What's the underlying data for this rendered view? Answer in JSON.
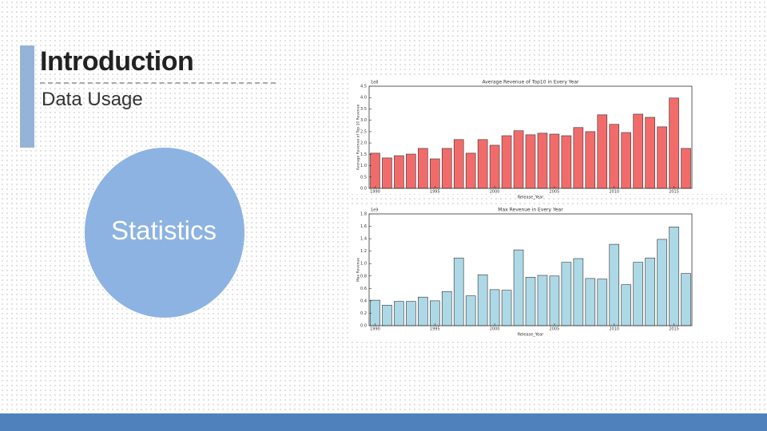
{
  "slide": {
    "title": "Introduction",
    "subtitle": "Data Usage",
    "circle_label": "Statistics"
  },
  "chart_data": [
    {
      "type": "bar",
      "title": "Average Revenue of Top10 in Every Year",
      "xlabel": "Release_Year",
      "ylabel": "Average Revenue of Top 10 Revenue",
      "multiplier": "1e8",
      "color": "#f26b6b",
      "x": [
        1990,
        1991,
        1992,
        1993,
        1994,
        1995,
        1996,
        1997,
        1998,
        1999,
        2000,
        2001,
        2002,
        2003,
        2004,
        2005,
        2006,
        2007,
        2008,
        2009,
        2010,
        2011,
        2012,
        2013,
        2014,
        2015,
        2016
      ],
      "values": [
        1.55,
        1.34,
        1.44,
        1.51,
        1.76,
        1.3,
        1.76,
        2.15,
        1.55,
        2.15,
        1.9,
        2.32,
        2.54,
        2.36,
        2.43,
        2.39,
        2.32,
        2.68,
        2.5,
        3.24,
        2.82,
        2.46,
        3.27,
        3.13,
        2.71,
        3.98,
        1.76
      ],
      "xlim": [
        1989.5,
        2016.5
      ],
      "xticks": [
        1990,
        1995,
        2000,
        2005,
        2010,
        2015
      ],
      "ylim": [
        0,
        4.5
      ],
      "yticks": [
        {
          "value": 0,
          "label": "0.0"
        },
        {
          "value": 0.5,
          "label": "0.5"
        },
        {
          "value": 1,
          "label": "1.0"
        },
        {
          "value": 1.5,
          "label": "1.5"
        },
        {
          "value": 2,
          "label": "2.0"
        },
        {
          "value": 2.5,
          "label": "2.5"
        },
        {
          "value": 3,
          "label": "3.0"
        },
        {
          "value": 3.5,
          "label": "3.5"
        },
        {
          "value": 4,
          "label": "4.0"
        },
        {
          "value": 4.5,
          "label": "4.5"
        }
      ]
    },
    {
      "type": "bar",
      "title": "Max Revenue in Every Year",
      "xlabel": "Release_Year",
      "ylabel": "Max Revenue",
      "multiplier": "1e9",
      "color": "#add8e6",
      "x": [
        1990,
        1991,
        1992,
        1993,
        1994,
        1995,
        1996,
        1997,
        1998,
        1999,
        2000,
        2001,
        2002,
        2003,
        2004,
        2005,
        2006,
        2007,
        2008,
        2009,
        2010,
        2011,
        2012,
        2013,
        2014,
        2015,
        2016
      ],
      "values": [
        0.41,
        0.33,
        0.39,
        0.39,
        0.46,
        0.4,
        0.55,
        1.09,
        0.48,
        0.82,
        0.58,
        0.57,
        1.22,
        0.78,
        0.81,
        0.8,
        1.02,
        1.08,
        0.76,
        0.75,
        1.31,
        0.66,
        1.02,
        1.09,
        1.39,
        1.59,
        0.84
      ],
      "xlim": [
        1989.5,
        2016.5
      ],
      "xticks": [
        1990,
        1995,
        2000,
        2005,
        2010,
        2015
      ],
      "ylim": [
        0,
        1.8
      ],
      "yticks": [
        {
          "value": 0,
          "label": "0.0"
        },
        {
          "value": 0.2,
          "label": "0.2"
        },
        {
          "value": 0.4,
          "label": "0.4"
        },
        {
          "value": 0.6,
          "label": "0.6"
        },
        {
          "value": 0.8,
          "label": "0.8"
        },
        {
          "value": 1,
          "label": "1.0"
        },
        {
          "value": 1.2,
          "label": "1.2"
        },
        {
          "value": 1.4,
          "label": "1.4"
        },
        {
          "value": 1.6,
          "label": "1.6"
        },
        {
          "value": 1.8,
          "label": "1.8"
        }
      ]
    }
  ]
}
